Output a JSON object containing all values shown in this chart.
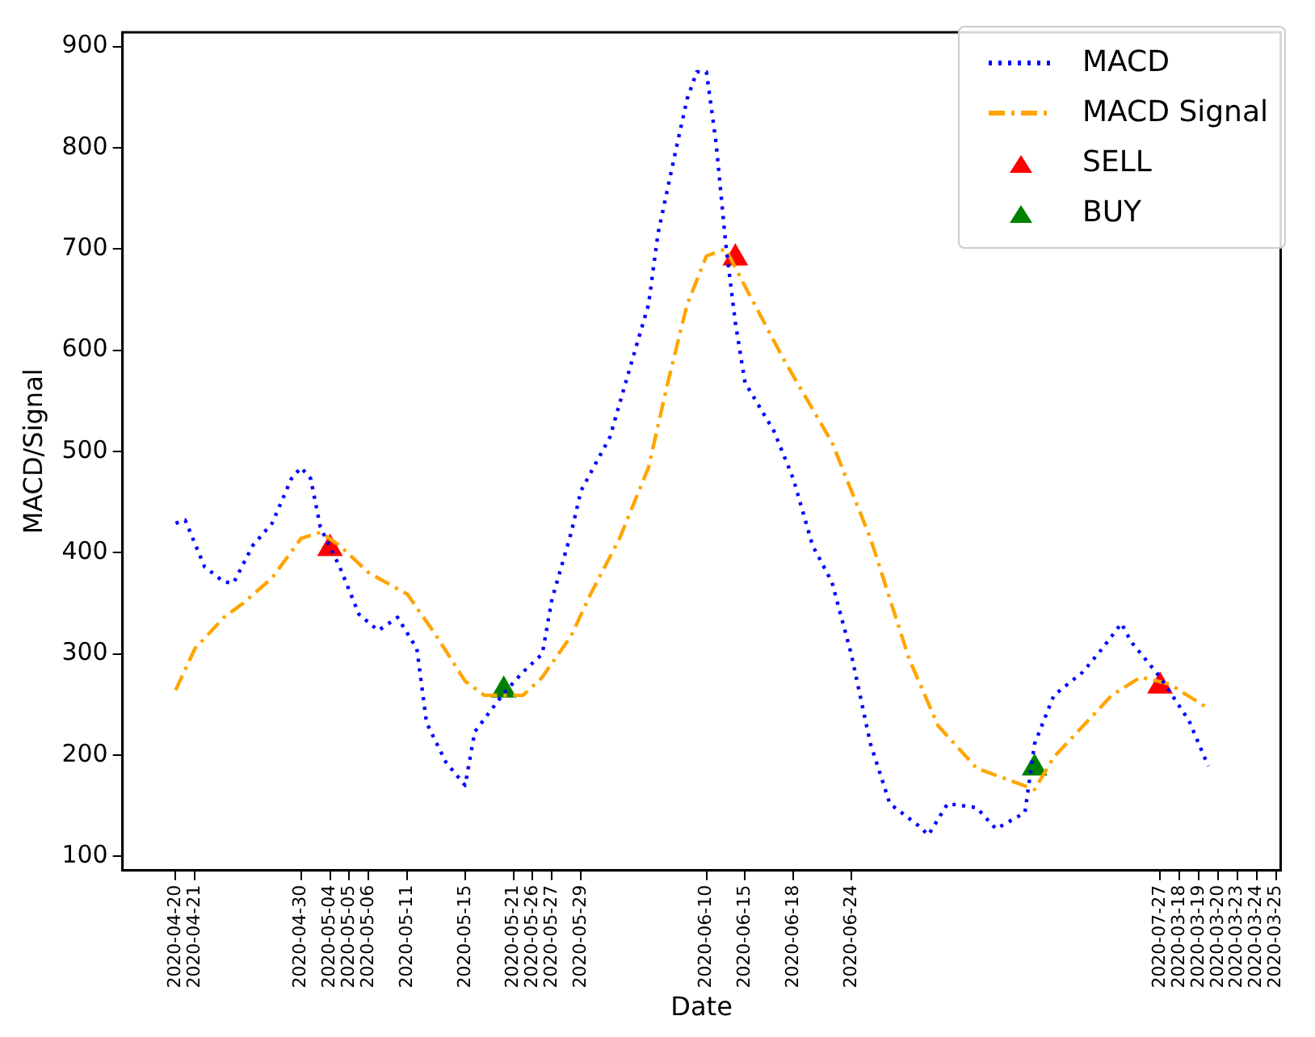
{
  "chart_data": {
    "type": "line",
    "xlabel": "Date",
    "ylabel": "MACD/Signal",
    "ylim": [
      86,
      914
    ],
    "yticks": [
      100,
      200,
      300,
      400,
      500,
      600,
      700,
      800,
      900
    ],
    "categories": [
      null,
      null,
      null,
      null,
      null,
      "2020-04-20",
      null,
      "2020-04-21",
      null,
      null,
      null,
      null,
      null,
      null,
      null,
      null,
      null,
      null,
      "2020-04-30",
      null,
      null,
      "2020-05-04",
      null,
      "2020-05-05",
      null,
      "2020-05-06",
      null,
      null,
      null,
      "2020-05-11",
      null,
      null,
      null,
      null,
      null,
      "2020-05-15",
      null,
      null,
      null,
      null,
      "2020-05-21",
      null,
      "2020-05-26",
      null,
      "2020-05-27",
      null,
      null,
      "2020-05-29",
      null,
      null,
      null,
      null,
      null,
      null,
      null,
      null,
      null,
      null,
      null,
      null,
      "2020-06-10",
      null,
      null,
      null,
      "2020-06-15",
      null,
      null,
      null,
      null,
      "2020-06-18",
      null,
      null,
      null,
      null,
      null,
      "2020-06-24",
      null,
      null,
      null,
      null,
      null,
      null,
      null,
      null,
      null,
      null,
      null,
      null,
      null,
      null,
      null,
      null,
      null,
      null,
      null,
      null,
      null,
      null,
      null,
      null,
      null,
      null,
      null,
      null,
      null,
      null,
      null,
      "2020-07-27",
      null,
      "2020-03-18",
      null,
      "2020-03-19",
      null,
      "2020-03-20",
      null,
      "2020-03-23",
      null,
      "2020-03-24",
      null,
      "2020-03-25"
    ],
    "legend": "top right",
    "grid": false,
    "series": [
      {
        "name": "MACD",
        "color": "#0000ff",
        "line_style": "dotted",
        "marker": "none",
        "values": [
          null,
          null,
          null,
          null,
          null,
          429,
          432,
          null,
          386,
          null,
          371,
          370,
          null,
          407,
          null,
          429,
          null,
          473,
          484,
          473,
          425,
          null,
          386,
          null,
          339,
          null,
          323,
          null,
          336,
          null,
          305,
          232,
          null,
          193,
          null,
          170,
          223,
          null,
          null,
          261,
          null,
          282,
          null,
          300,
          354,
          null,
          420,
          461,
          null,
          null,
          514,
          null,
          580,
          null,
          645,
          716,
          null,
          805,
          848,
          875,
          875,
          805,
          705,
          627,
          568,
          null,
          null,
          520,
          null,
          473,
          null,
          407,
          null,
          371,
          null,
          300,
          null,
          211,
          null,
          152,
          null,
          null,
          130,
          121,
          null,
          152,
          null,
          null,
          148,
          null,
          127,
          null,
          null,
          143,
          211,
          null,
          259,
          null,
          null,
          282,
          null,
          305,
          null,
          330,
          312,
          null,
          null,
          277,
          null,
          null,
          234,
          null,
          189,
          null,
          null,
          null,
          null,
          null,
          null,
          null
        ]
      },
      {
        "name": "MACD Signal",
        "color": "#ffa500",
        "line_style": "dashed",
        "marker": "none",
        "values": [
          null,
          null,
          null,
          null,
          null,
          264,
          null,
          305,
          null,
          null,
          336,
          null,
          350,
          null,
          null,
          375,
          null,
          null,
          414,
          null,
          420,
          null,
          407,
          null,
          null,
          380,
          null,
          null,
          null,
          359,
          null,
          null,
          318,
          null,
          null,
          273,
          null,
          259,
          null,
          null,
          null,
          259,
          null,
          277,
          null,
          null,
          318,
          null,
          359,
          null,
          null,
          414,
          null,
          null,
          484,
          null,
          568,
          null,
          645,
          null,
          693,
          null,
          700,
          null,
          663,
          null,
          null,
          null,
          591,
          null,
          null,
          null,
          null,
          509,
          null,
          null,
          null,
          414,
          null,
          null,
          null,
          295,
          null,
          null,
          229,
          null,
          null,
          null,
          187,
          null,
          null,
          null,
          null,
          null,
          166,
          null,
          198,
          null,
          null,
          null,
          null,
          null,
          259,
          null,
          null,
          277,
          null,
          null,
          270,
          null,
          null,
          null,
          246,
          null,
          null,
          null,
          null,
          null,
          null,
          null
        ]
      },
      {
        "type": "scatter",
        "name": "SELL",
        "color": "#ff0000",
        "marker": "triangle",
        "values": [
          null,
          null,
          null,
          null,
          null,
          null,
          null,
          null,
          null,
          null,
          null,
          null,
          null,
          null,
          null,
          null,
          null,
          null,
          null,
          null,
          null,
          404,
          null,
          null,
          null,
          null,
          null,
          null,
          null,
          null,
          null,
          null,
          null,
          null,
          null,
          null,
          null,
          null,
          null,
          null,
          null,
          null,
          null,
          null,
          null,
          null,
          null,
          null,
          null,
          null,
          null,
          null,
          null,
          null,
          null,
          null,
          null,
          null,
          null,
          null,
          null,
          null,
          null,
          691,
          null,
          null,
          null,
          null,
          null,
          null,
          null,
          null,
          null,
          null,
          null,
          null,
          null,
          null,
          null,
          null,
          null,
          null,
          null,
          null,
          null,
          null,
          null,
          null,
          null,
          null,
          null,
          null,
          null,
          null,
          null,
          null,
          null,
          null,
          null,
          null,
          null,
          null,
          null,
          null,
          null,
          null,
          null,
          268,
          null,
          null,
          null,
          null,
          null,
          null,
          null,
          null,
          null,
          null,
          null,
          null
        ]
      },
      {
        "type": "scatter",
        "name": "BUY",
        "color": "#008000",
        "marker": "triangle",
        "values": [
          null,
          null,
          null,
          null,
          null,
          null,
          null,
          null,
          null,
          null,
          null,
          null,
          null,
          null,
          null,
          null,
          null,
          null,
          null,
          null,
          null,
          null,
          null,
          null,
          null,
          null,
          null,
          null,
          null,
          null,
          null,
          null,
          null,
          null,
          null,
          null,
          null,
          null,
          null,
          264,
          null,
          null,
          null,
          null,
          null,
          null,
          null,
          null,
          null,
          null,
          null,
          null,
          null,
          null,
          null,
          null,
          null,
          null,
          null,
          null,
          null,
          null,
          null,
          null,
          null,
          null,
          null,
          null,
          null,
          null,
          null,
          null,
          null,
          null,
          null,
          null,
          null,
          null,
          null,
          null,
          null,
          null,
          null,
          null,
          null,
          null,
          null,
          null,
          null,
          null,
          null,
          null,
          null,
          null,
          187,
          null,
          null,
          null,
          null,
          null,
          null,
          null,
          null,
          null,
          null,
          null,
          null,
          null,
          null,
          null,
          null,
          null,
          null,
          null,
          null,
          null,
          null,
          null,
          null,
          null
        ]
      }
    ]
  }
}
